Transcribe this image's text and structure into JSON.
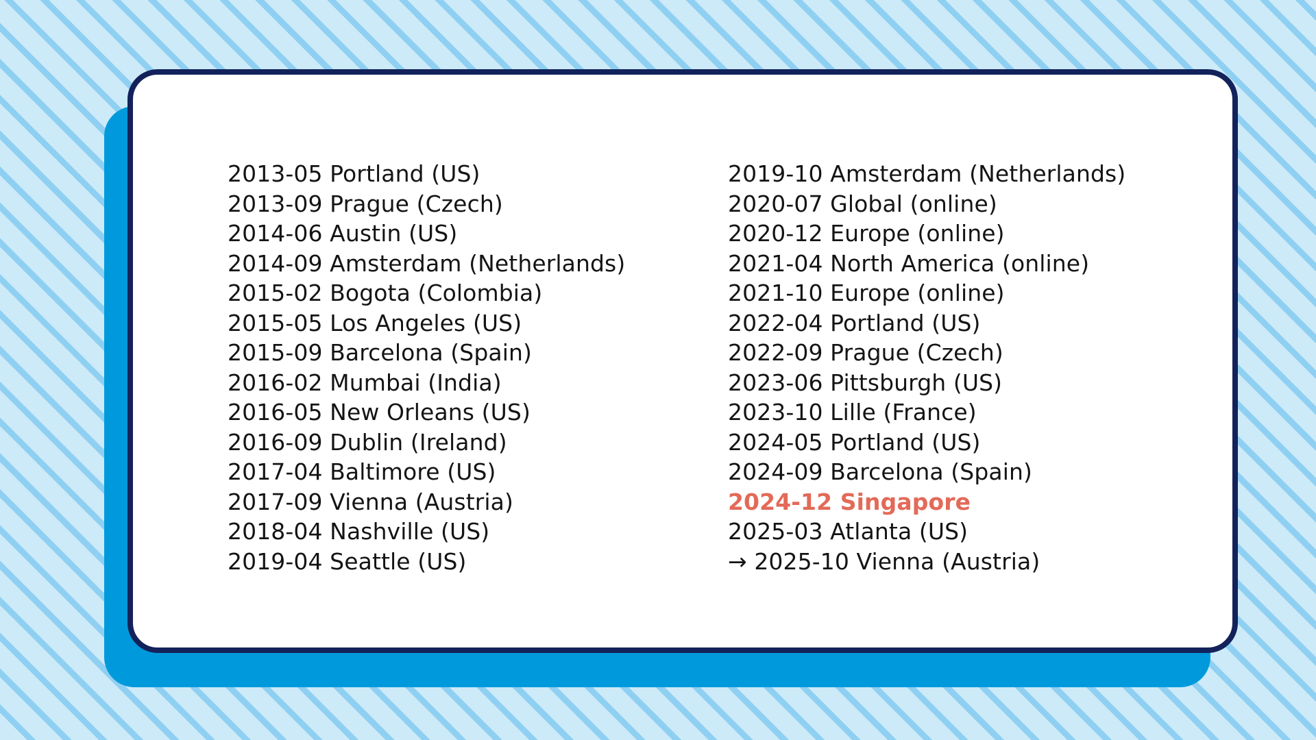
{
  "colors": {
    "background": "#cdeaf8",
    "stripe": "#8fd0f2",
    "card_shadow": "#009adc",
    "card_border": "#13225a",
    "text": "#141414",
    "highlight": "#e36a58"
  },
  "events_left": [
    "2013-05 Portland (US)",
    "2013-09 Prague (Czech)",
    "2014-06 Austin (US)",
    "2014-09 Amsterdam (Netherlands)",
    "2015-02 Bogota (Colombia)",
    "2015-05 Los Angeles (US)",
    "2015-09 Barcelona (Spain)",
    "2016-02 Mumbai (India)",
    "2016-05 New Orleans (US)",
    "2016-09 Dublin (Ireland)",
    "2017-04 Baltimore (US)",
    "2017-09 Vienna (Austria)",
    "2018-04 Nashville (US)",
    "2019-04 Seattle (US)"
  ],
  "events_right": [
    "2019-10 Amsterdam (Netherlands)",
    "2020-07 Global (online)",
    "2020-12 Europe (online)",
    "2021-04 North America (online)",
    "2021-10 Europe (online)",
    "2022-04 Portland (US)",
    "2022-09 Prague (Czech)",
    "2023-06 Pittsburgh (US)",
    "2023-10 Lille (France)",
    "2024-05 Portland (US)",
    "2024-09 Barcelona (Spain)",
    "2024-12 Singapore",
    "2025-03 Atlanta (US)",
    "→ 2025-10 Vienna (Austria)"
  ]
}
